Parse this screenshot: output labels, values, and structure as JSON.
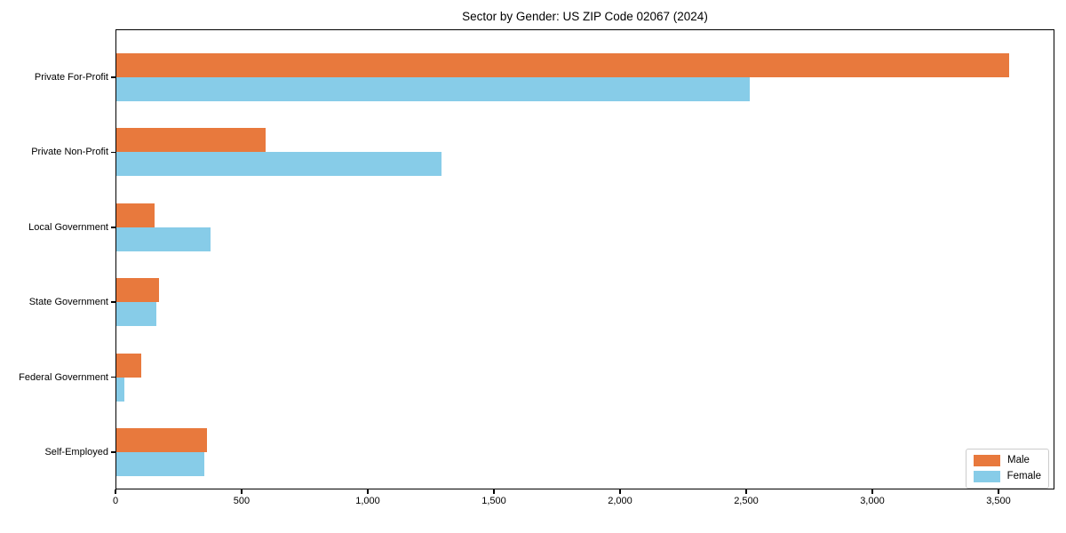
{
  "chart_data": {
    "type": "bar",
    "orientation": "horizontal",
    "title": "Sector by Gender: US ZIP Code 02067 (2024)",
    "categories": [
      "Private For-Profit",
      "Private Non-Profit",
      "Local Government",
      "State Government",
      "Federal Government",
      "Self-Employed"
    ],
    "series": [
      {
        "name": "Male",
        "color": "#E8793D",
        "values": [
          3540,
          590,
          150,
          170,
          100,
          360
        ]
      },
      {
        "name": "Female",
        "color": "#87CCE8",
        "values": [
          2510,
          1290,
          375,
          160,
          30,
          350
        ]
      }
    ],
    "xlim": [
      0,
      3722
    ],
    "xtick_values": [
      0,
      500,
      1000,
      1500,
      2000,
      2500,
      3000,
      3500
    ],
    "xtick_labels": [
      "0",
      "500",
      "1,000",
      "1,500",
      "2,000",
      "2,500",
      "3,000",
      "3,500"
    ],
    "xlabel": "",
    "ylabel": "",
    "grid": false,
    "legend": {
      "position": "lower right",
      "labels": [
        "Male",
        "Female"
      ]
    }
  }
}
